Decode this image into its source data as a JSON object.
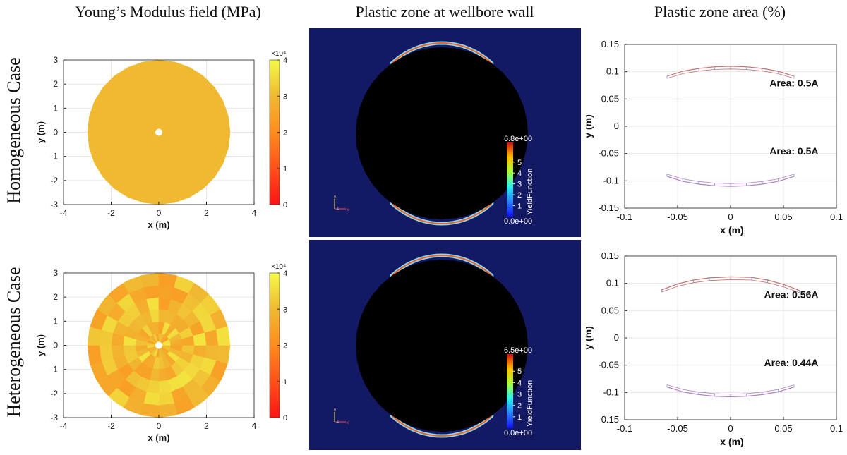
{
  "titles": {
    "col1": "Young’s Modulus field (MPa)",
    "col2": "Plastic zone at wellbore wall",
    "col3": "Plastic zone area (%)"
  },
  "rows": {
    "row1": "Homogeneous Case",
    "row2": "Heterogeneous Case"
  },
  "chart_data": [
    {
      "type": "heatmap",
      "xlabel": "x (m)",
      "ylabel": "y (m)",
      "xlim": [
        -4,
        4
      ],
      "ylim": [
        -3,
        3
      ],
      "xticks": [
        -4,
        -2,
        0,
        2,
        4
      ],
      "yticks": [
        -3,
        -2,
        -1,
        0,
        1,
        2,
        3
      ],
      "colorbar": {
        "ticks": [
          0,
          1,
          2,
          3,
          4
        ],
        "exponent": "×10⁴",
        "range": [
          0,
          40000
        ]
      },
      "field": "uniform",
      "value": 30000,
      "hole_radius": 0.1,
      "domain_radius": 3
    },
    {
      "type": "heatmap",
      "colorbar": {
        "max_label": "6.8e+00",
        "min_label": "0.0e+00",
        "ticks": [
          1,
          2,
          3,
          4,
          5
        ],
        "label": "YieldFunction"
      },
      "axes_glyph": [
        "y",
        "z",
        "x"
      ]
    },
    {
      "type": "line",
      "xlabel": "x (m)",
      "ylabel": "y (m)",
      "xlim": [
        -0.1,
        0.1
      ],
      "ylim": [
        -0.15,
        0.15
      ],
      "xticks": [
        "-0.1",
        "-0.05",
        "0",
        "0.05",
        "0.1"
      ],
      "yticks": [
        "0.15",
        "0.1",
        "0.05",
        "0",
        "-0.05",
        "-0.1",
        "-0.15"
      ],
      "annotations": [
        "Area: 0.5A",
        "Area: 0.5A"
      ],
      "series": [
        {
          "x": [
            -0.06,
            -0.045,
            -0.03,
            -0.015,
            0,
            0.015,
            0.03,
            0.045,
            0.06
          ],
          "y": [
            0.092,
            0.101,
            0.106,
            0.109,
            0.11,
            0.109,
            0.106,
            0.101,
            0.092
          ]
        },
        {
          "x": [
            -0.06,
            -0.045,
            -0.03,
            -0.015,
            0,
            0.015,
            0.03,
            0.045,
            0.06
          ],
          "y": [
            -0.092,
            -0.101,
            -0.106,
            -0.109,
            -0.11,
            -0.109,
            -0.106,
            -0.101,
            -0.092
          ]
        }
      ]
    },
    {
      "type": "heatmap",
      "xlabel": "x (m)",
      "ylabel": "y (m)",
      "xlim": [
        -4,
        4
      ],
      "ylim": [
        -3,
        3
      ],
      "xticks": [
        -4,
        -2,
        0,
        2,
        4
      ],
      "yticks": [
        -3,
        -2,
        -1,
        0,
        1,
        2,
        3
      ],
      "colorbar": {
        "ticks": [
          0,
          1,
          2,
          3,
          4
        ],
        "exponent": "×10⁴",
        "range": [
          0,
          40000
        ]
      },
      "field": "random",
      "hole_radius": 0.1,
      "domain_radius": 3
    },
    {
      "type": "heatmap",
      "colorbar": {
        "max_label": "6.5e+00",
        "min_label": "0.0e+00",
        "ticks": [
          1,
          2,
          3,
          4,
          5
        ],
        "label": "YieldFunction"
      },
      "axes_glyph": [
        "y",
        "z",
        "x"
      ]
    },
    {
      "type": "line",
      "xlabel": "x (m)",
      "ylabel": "y (m)",
      "xlim": [
        -0.1,
        0.1
      ],
      "ylim": [
        -0.15,
        0.15
      ],
      "xticks": [
        "-0.1",
        "-0.05",
        "0",
        "0.05",
        "0.1"
      ],
      "yticks": [
        "0.15",
        "0.1",
        "0.05",
        "0",
        "-0.05",
        "-0.1",
        "-0.15"
      ],
      "annotations": [
        "Area: 0.56A",
        "Area: 0.44A"
      ],
      "series": [
        {
          "x": [
            -0.065,
            -0.05,
            -0.035,
            -0.02,
            0,
            0.02,
            0.035,
            0.05,
            0.065
          ],
          "y": [
            0.088,
            0.099,
            0.106,
            0.11,
            0.112,
            0.111,
            0.106,
            0.098,
            0.087
          ]
        },
        {
          "x": [
            -0.06,
            -0.045,
            -0.03,
            -0.015,
            0,
            0.015,
            0.03,
            0.045,
            0.06
          ],
          "y": [
            -0.09,
            -0.099,
            -0.104,
            -0.107,
            -0.108,
            -0.107,
            -0.104,
            -0.099,
            -0.09
          ]
        }
      ]
    }
  ]
}
